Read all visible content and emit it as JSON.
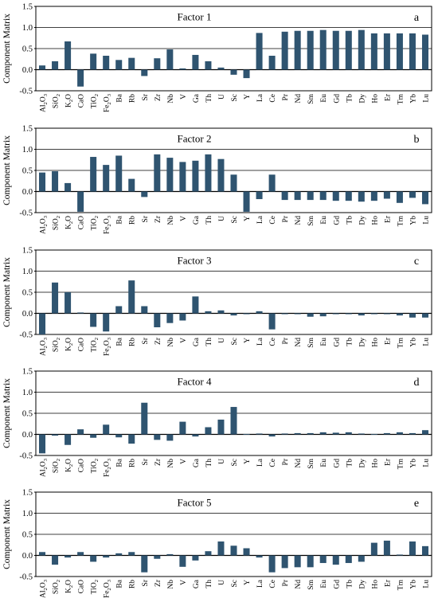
{
  "figure": {
    "ylabel": "Component Matrix",
    "categories": [
      "Al2O3",
      "SiO2",
      "K2O",
      "CaO",
      "TiO2",
      "Fe2O3",
      "Ba",
      "Rb",
      "Sr",
      "Zr",
      "Nb",
      "V",
      "Ga",
      "Th",
      "U",
      "Sc",
      "Y",
      "La",
      "Ce",
      "Pr",
      "Nd",
      "Sm",
      "Eu",
      "Gd",
      "Tb",
      "Dy",
      "Ho",
      "Er",
      "Tm",
      "Yb",
      "Lu"
    ],
    "bar_color": "#2f5470"
  },
  "chart_data": [
    {
      "type": "bar",
      "title": "Factor 1",
      "panel_letter": "a",
      "ylabel": "Component Matrix",
      "ylim": [
        -0.5,
        1.5
      ],
      "yticks": [
        "1.5",
        "1.0",
        "0.5",
        "0.0",
        "-0.5"
      ],
      "categories": [
        "Al2O3",
        "SiO2",
        "K2O",
        "CaO",
        "TiO2",
        "Fe2O3",
        "Ba",
        "Rb",
        "Sr",
        "Zr",
        "Nb",
        "V",
        "Ga",
        "Th",
        "U",
        "Sc",
        "Y",
        "La",
        "Ce",
        "Pr",
        "Nd",
        "Sm",
        "Eu",
        "Gd",
        "Tb",
        "Dy",
        "Ho",
        "Er",
        "Tm",
        "Yb",
        "Lu"
      ],
      "values": [
        0.1,
        0.2,
        0.67,
        -0.4,
        0.38,
        0.33,
        0.23,
        0.28,
        -0.15,
        0.27,
        0.48,
        0.03,
        0.35,
        0.2,
        0.05,
        -0.12,
        -0.2,
        0.87,
        0.33,
        0.9,
        0.92,
        0.92,
        0.94,
        0.92,
        0.92,
        0.94,
        0.86,
        0.86,
        0.86,
        0.86,
        0.83
      ]
    },
    {
      "type": "bar",
      "title": "Factor 2",
      "panel_letter": "b",
      "ylabel": "Component Matrix",
      "ylim": [
        -0.5,
        1.5
      ],
      "yticks": [
        "1.5",
        "1.0",
        "0.5",
        "0.0",
        "-0.5"
      ],
      "categories": [
        "Al2O3",
        "SiO2",
        "K2O",
        "CaO",
        "TiO2",
        "Fe2O3",
        "Ba",
        "Rb",
        "Sr",
        "Zr",
        "Nb",
        "V",
        "Ga",
        "Th",
        "U",
        "Sc",
        "Y",
        "La",
        "Ce",
        "Pr",
        "Nd",
        "Sm",
        "Eu",
        "Gd",
        "Tb",
        "Dy",
        "Ho",
        "Er",
        "Tm",
        "Yb",
        "Lu"
      ],
      "values": [
        0.45,
        0.48,
        0.2,
        -0.48,
        0.82,
        0.63,
        0.85,
        0.3,
        -0.13,
        0.88,
        0.8,
        0.7,
        0.73,
        0.88,
        0.77,
        0.4,
        -0.48,
        -0.18,
        0.4,
        -0.2,
        -0.2,
        -0.2,
        -0.2,
        -0.22,
        -0.22,
        -0.24,
        -0.22,
        -0.17,
        -0.27,
        -0.15,
        -0.3
      ]
    },
    {
      "type": "bar",
      "title": "Factor 3",
      "panel_letter": "c",
      "ylabel": "Component Matrix",
      "ylim": [
        -0.5,
        1.5
      ],
      "yticks": [
        "1.5",
        "1.0",
        "0.5",
        "0.0",
        "-0.5"
      ],
      "categories": [
        "Al2O3",
        "SiO2",
        "K2O",
        "CaO",
        "TiO2",
        "Fe2O3",
        "Ba",
        "Rb",
        "Sr",
        "Zr",
        "Nb",
        "V",
        "Ga",
        "Th",
        "U",
        "Sc",
        "Y",
        "La",
        "Ce",
        "Pr",
        "Nd",
        "Sm",
        "Eu",
        "Gd",
        "Tb",
        "Dy",
        "Ho",
        "Er",
        "Tm",
        "Yb",
        "Lu"
      ],
      "values": [
        -0.5,
        0.73,
        0.5,
        0.02,
        -0.32,
        -0.43,
        0.17,
        0.78,
        0.17,
        -0.33,
        -0.23,
        -0.17,
        0.4,
        0.05,
        0.07,
        -0.05,
        -0.02,
        0.05,
        -0.38,
        -0.02,
        -0.02,
        -0.08,
        -0.07,
        -0.02,
        -0.02,
        -0.05,
        -0.02,
        -0.02,
        -0.05,
        -0.1,
        -0.1
      ]
    },
    {
      "type": "bar",
      "title": "Factor 4",
      "panel_letter": "d",
      "ylabel": "Component Matrix",
      "ylim": [
        -0.5,
        1.5
      ],
      "yticks": [
        "1.5",
        "1.0",
        "0.5",
        "0.0",
        "-0.5"
      ],
      "categories": [
        "Al2O3",
        "SiO2",
        "K2O",
        "CaO",
        "TiO2",
        "Fe2O3",
        "Ba",
        "Rb",
        "Sr",
        "Zr",
        "Nb",
        "V",
        "Ga",
        "Th",
        "U",
        "Sc",
        "Y",
        "La",
        "Ce",
        "Pr",
        "Nd",
        "Sm",
        "Eu",
        "Gd",
        "Tb",
        "Dy",
        "Ho",
        "Er",
        "Tm",
        "Yb",
        "Lu"
      ],
      "values": [
        -0.45,
        -0.03,
        -0.25,
        0.12,
        -0.08,
        0.23,
        -0.07,
        -0.22,
        0.75,
        -0.13,
        -0.15,
        0.3,
        -0.05,
        0.17,
        0.35,
        0.65,
        0.01,
        0.02,
        -0.05,
        0.02,
        0.03,
        0.03,
        0.05,
        0.04,
        0.05,
        0.02,
        0.01,
        0.03,
        0.05,
        0.03,
        0.1
      ]
    },
    {
      "type": "bar",
      "title": "Factor 5",
      "panel_letter": "e",
      "ylabel": "Component Matrix",
      "ylim": [
        -0.5,
        1.5
      ],
      "yticks": [
        "1.5",
        "1.0",
        "0.5",
        "0.0",
        "-0.5"
      ],
      "categories": [
        "Al2O3",
        "SiO2",
        "K2O",
        "CaO",
        "TiO2",
        "Fe2O3",
        "Ba",
        "Rb",
        "Sr",
        "Zr",
        "Nb",
        "V",
        "Ga",
        "Th",
        "U",
        "Sc",
        "Y",
        "La",
        "Ce",
        "Pr",
        "Nd",
        "Sm",
        "Eu",
        "Gd",
        "Tb",
        "Dy",
        "Ho",
        "Er",
        "Tm",
        "Yb",
        "Lu"
      ],
      "values": [
        0.08,
        -0.22,
        -0.05,
        0.08,
        -0.15,
        -0.05,
        0.05,
        0.08,
        -0.4,
        -0.08,
        0.03,
        -0.27,
        -0.12,
        0.1,
        0.33,
        0.23,
        0.17,
        -0.05,
        -0.4,
        -0.3,
        -0.28,
        -0.28,
        -0.18,
        -0.22,
        -0.18,
        -0.15,
        0.3,
        0.35,
        0.02,
        0.33,
        0.22
      ]
    }
  ]
}
